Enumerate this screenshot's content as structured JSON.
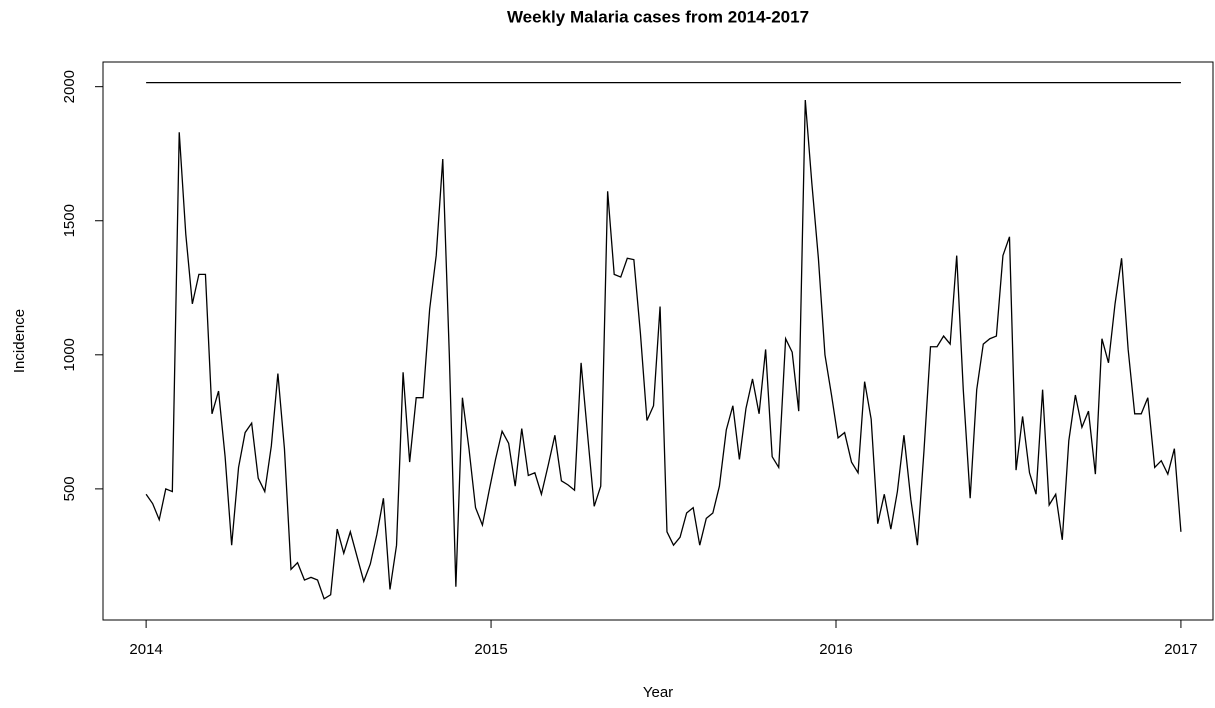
{
  "chart_data": {
    "type": "line",
    "title": "Weekly Malaria cases from 2014-2017",
    "x_label": "Year",
    "y_label": "Incidence",
    "xlim": [
      2013.875,
      2017.093
    ],
    "ylim": [
      11,
      2092
    ],
    "xticks": [
      2014,
      2015,
      2016,
      2017
    ],
    "yticks": [
      500,
      1000,
      1500,
      2000
    ],
    "series": [
      {
        "color": "#000000",
        "x": [
          2014,
          2014.019,
          2014.038,
          2014.057,
          2014.076,
          2014.096,
          2014.115,
          2014.134,
          2014.153,
          2014.172,
          2014.191,
          2014.21,
          2014.229,
          2014.248,
          2014.268,
          2014.287,
          2014.306,
          2014.325,
          2014.344,
          2014.363,
          2014.382,
          2014.401,
          2014.42,
          2014.439,
          2014.459,
          2014.478,
          2014.497,
          2014.516,
          2014.535,
          2014.554,
          2014.573,
          2014.592,
          2014.611,
          2014.631,
          2014.65,
          2014.669,
          2014.688,
          2014.707,
          2014.726,
          2014.745,
          2014.764,
          2014.783,
          2014.803,
          2014.822,
          2014.841,
          2014.86,
          2014.879,
          2014.898,
          2014.917,
          2014.936,
          2014.955,
          2014.975,
          2014.994,
          2015.013,
          2015.032,
          2015.051,
          2015.07,
          2015.089,
          2015.108,
          2015.127,
          2015.146,
          2015.166,
          2015.185,
          2015.204,
          2015.223,
          2015.242,
          2015.261,
          2015.28,
          2015.299,
          2015.318,
          2015.338,
          2015.357,
          2015.376,
          2015.395,
          2015.414,
          2015.433,
          2015.452,
          2015.471,
          2015.49,
          2015.51,
          2015.529,
          2015.548,
          2015.567,
          2015.586,
          2015.605,
          2015.624,
          2015.643,
          2015.662,
          2015.682,
          2015.701,
          2015.72,
          2015.739,
          2015.758,
          2015.777,
          2015.796,
          2015.815,
          2015.834,
          2015.854,
          2015.873,
          2015.892,
          2015.911,
          2015.93,
          2015.949,
          2015.968,
          2015.987,
          2016.006,
          2016.025,
          2016.045,
          2016.064,
          2016.083,
          2016.102,
          2016.121,
          2016.14,
          2016.159,
          2016.178,
          2016.197,
          2016.217,
          2016.236,
          2016.255,
          2016.274,
          2016.293,
          2016.312,
          2016.331,
          2016.35,
          2016.369,
          2016.389,
          2016.408,
          2016.427,
          2016.446,
          2016.465,
          2016.484,
          2016.503,
          2016.522,
          2016.541,
          2016.561,
          2016.58,
          2016.599,
          2016.618,
          2016.637,
          2016.656,
          2016.675,
          2016.694,
          2016.713,
          2016.732,
          2016.752,
          2016.771,
          2016.79,
          2016.809,
          2016.828,
          2016.847,
          2016.866,
          2016.885,
          2016.904,
          2016.924,
          2016.943,
          2016.962,
          2016.981,
          2017
        ],
        "values": [
          480,
          445,
          385,
          500,
          490,
          1830,
          1450,
          1190,
          1300,
          1300,
          780,
          865,
          620,
          290,
          580,
          710,
          745,
          540,
          490,
          660,
          930,
          650,
          200,
          225,
          160,
          170,
          160,
          90,
          105,
          350,
          260,
          340,
          250,
          155,
          220,
          330,
          465,
          125,
          290,
          935,
          600,
          840,
          840,
          1170,
          1370,
          1730,
          1000,
          135,
          840,
          650,
          430,
          365,
          490,
          610,
          715,
          670,
          510,
          725,
          550,
          560,
          480,
          590,
          700,
          530,
          515,
          495,
          970,
          700,
          435,
          510,
          1610,
          1300,
          1290,
          1360,
          1355,
          1080,
          755,
          810,
          1180,
          340,
          290,
          320,
          410,
          430,
          290,
          390,
          410,
          510,
          720,
          810,
          610,
          800,
          910,
          780,
          1020,
          620,
          580,
          1060,
          1010,
          790,
          1950,
          1640,
          1360,
          1000,
          850,
          690,
          710,
          600,
          560,
          900,
          760,
          370,
          480,
          350,
          490,
          700,
          460,
          290,
          640,
          1030,
          1030,
          1070,
          1040,
          1370,
          870,
          465,
          870,
          1040,
          1060,
          1070,
          1370,
          1440,
          570,
          770,
          560,
          480,
          870,
          440,
          480,
          310,
          680,
          850,
          730,
          790,
          555,
          1060,
          970,
          1190,
          1360,
          1020,
          780,
          780,
          840,
          580,
          605,
          555,
          650,
          340
        ]
      },
      {
        "color": "#000000",
        "x": [
          2014,
          2017
        ],
        "values": [
          2015,
          2015
        ]
      }
    ]
  }
}
